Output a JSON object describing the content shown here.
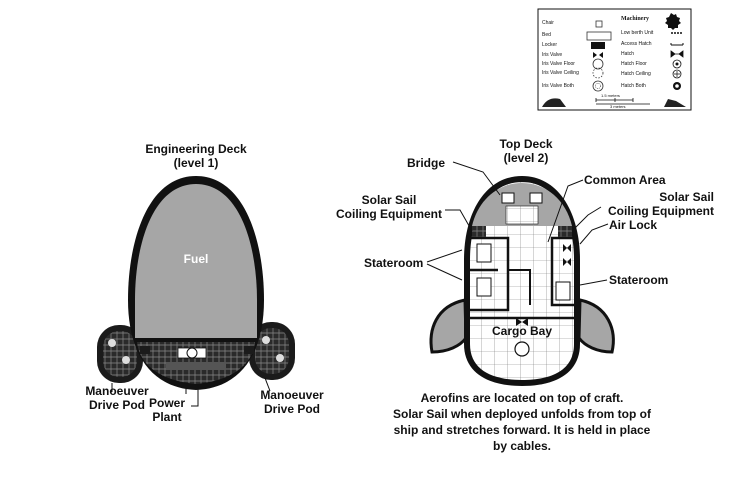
{
  "legend": {
    "header": "Machinery",
    "left_items": [
      "Chair",
      "Bed",
      "Locker",
      "Iris Valve",
      "Iris Valve Floor",
      "Iris Valve Ceiling",
      "Iris Valve Both"
    ],
    "right_items": [
      "Low berth Unit",
      "Access Hatch",
      "Hatch",
      "Hatch Floor",
      "Hatch Ceiling",
      "Hatch Both"
    ],
    "scale_top": "1.5 meters",
    "scale_bottom": "3 meters"
  },
  "engineering_deck": {
    "title_line1": "Engineering Deck",
    "title_line2": "(level 1)",
    "fuel": "Fuel",
    "left_pod_line1": "Manoeuver",
    "left_pod_line2": "Drive Pod",
    "power_line1": "Power",
    "power_line2": "Plant",
    "right_pod_line1": "Manoeuver",
    "right_pod_line2": "Drive Pod"
  },
  "top_deck": {
    "title_line1": "Top Deck",
    "title_line2": "(level 2)",
    "bridge": "Bridge",
    "common_area": "Common Area",
    "solar_left_line1": "Solar Sail",
    "solar_left_line2": "Coiling Equipment",
    "solar_right_line1": "Solar Sail",
    "solar_right_line2": "Coiling Equipment",
    "air_lock": "Air Lock",
    "stateroom_left": "Stateroom",
    "stateroom_right": "Stateroom",
    "cargo_bay": "Cargo Bay"
  },
  "notes": {
    "line1": "Aerofins are located on top of craft.",
    "line2": "Solar Sail when deployed unfolds from top of",
    "line3": "ship and stretches forward.  It is held in place",
    "line4": "by cables."
  }
}
